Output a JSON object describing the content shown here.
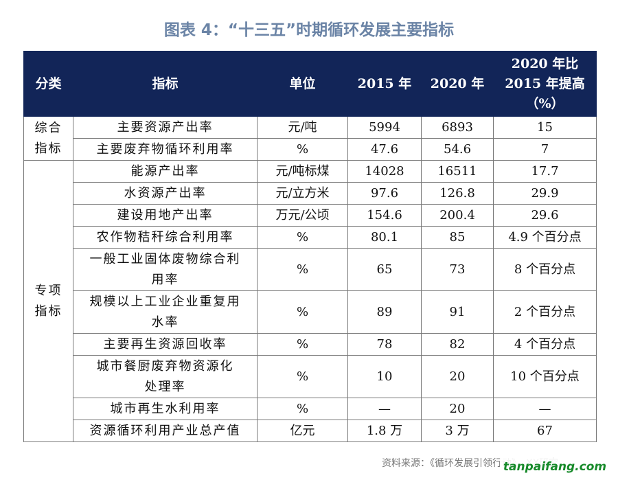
{
  "title": "图表 4：“十三五”时期循环发展主要指标",
  "headers": {
    "category": "分类",
    "indicator": "指标",
    "unit": "单位",
    "y2015": "2015 年",
    "y2020": "2020 年",
    "increase_line1": "2020 年比",
    "increase_line2": "2015 年提高",
    "increase_line3": "（%）"
  },
  "categories": {
    "comprehensive_line1": "综合",
    "comprehensive_line2": "指标",
    "special_line1": "专项",
    "special_line2": "指标"
  },
  "rows": [
    {
      "indicator": "主要资源产出率",
      "unit": "元/吨",
      "y2015": "5994",
      "y2020": "6893",
      "increase": "15"
    },
    {
      "indicator": "主要废弃物循环利用率",
      "unit": "%",
      "y2015": "47.6",
      "y2020": "54.6",
      "increase": "7"
    },
    {
      "indicator": "能源产出率",
      "unit": "元/吨标煤",
      "y2015": "14028",
      "y2020": "16511",
      "increase": "17.7"
    },
    {
      "indicator": "水资源产出率",
      "unit": "元/立方米",
      "y2015": "97.6",
      "y2020": "126.8",
      "increase": "29.9"
    },
    {
      "indicator": "建设用地产出率",
      "unit": "万元/公顷",
      "y2015": "154.6",
      "y2020": "200.4",
      "increase": "29.6"
    },
    {
      "indicator": "农作物秸秆综合利用率",
      "unit": "%",
      "y2015": "80.1",
      "y2020": "85",
      "increase": "4.9 个百分点"
    },
    {
      "indicator_line1": "一般工业固体废物综合利",
      "indicator_line2": "用率",
      "unit": "%",
      "y2015": "65",
      "y2020": "73",
      "increase": "8 个百分点"
    },
    {
      "indicator_line1": "规模以上工业企业重复用",
      "indicator_line2": "水率",
      "unit": "%",
      "y2015": "89",
      "y2020": "91",
      "increase": "2 个百分点"
    },
    {
      "indicator": "主要再生资源回收率",
      "unit": "%",
      "y2015": "78",
      "y2020": "82",
      "increase": "4 个百分点"
    },
    {
      "indicator_line1": "城市餐厨废弃物资源化",
      "indicator_line2": "处理率",
      "unit": "%",
      "y2015": "10",
      "y2020": "20",
      "increase": "10 个百分点"
    },
    {
      "indicator": "城市再生水利用率",
      "unit": "%",
      "y2015": "—",
      "y2020": "20",
      "increase": "—"
    },
    {
      "indicator": "资源循环利用产业总产值",
      "unit": "亿元",
      "y2015": "1.8 万",
      "y2020": "3 万",
      "increase": "67"
    }
  ],
  "footer": "资料来源：《循环发展引领行动》，XX研究",
  "watermark": "tanpaifang.com"
}
